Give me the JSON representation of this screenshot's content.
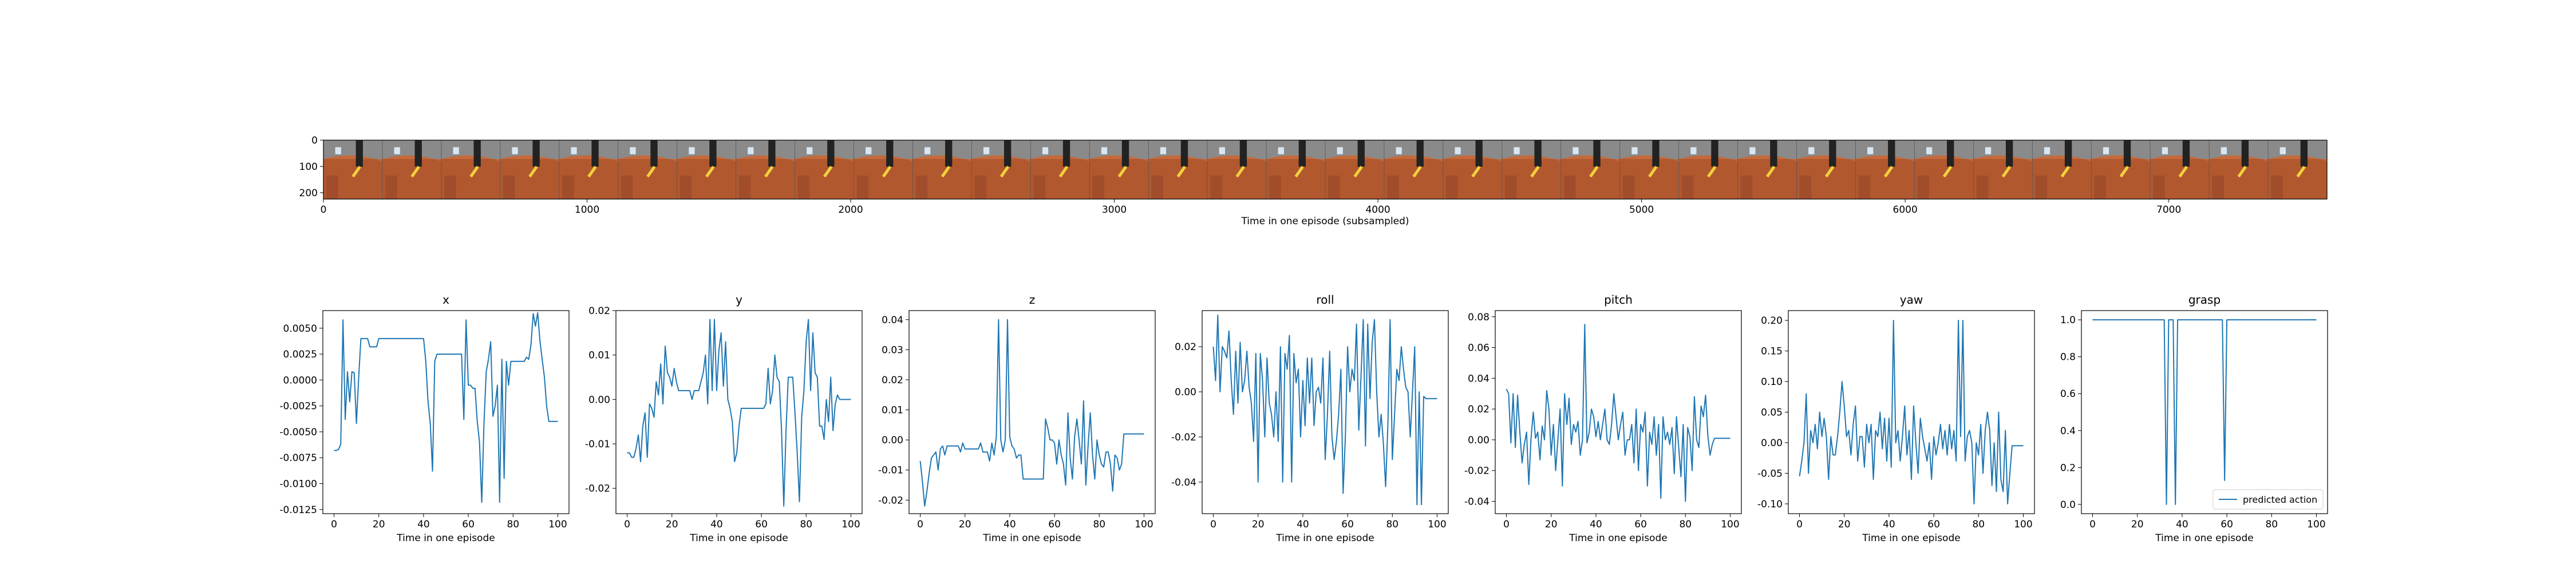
{
  "filmstrip": {
    "xlabel": "Time in one episode (subsampled)",
    "x_ticks": [
      "0",
      "1000",
      "2000",
      "3000",
      "4000",
      "5000",
      "6000",
      "7000"
    ],
    "y_ticks": [
      "0",
      "100",
      "200"
    ],
    "frame_count": 34
  },
  "chart_data": [
    {
      "type": "line",
      "title": "x",
      "xlabel": "Time in one episode",
      "ylabel": "",
      "xlim": [
        -5,
        105
      ],
      "ylim": [
        -0.0129,
        0.0067
      ],
      "x_ticks": [
        "0",
        "20",
        "40",
        "60",
        "80",
        "100"
      ],
      "y_ticks": [
        "0.0050",
        "0.0025",
        "0.0000",
        "-0.0025",
        "-0.0050",
        "-0.0075",
        "-0.0100",
        "-0.0125"
      ],
      "series": [
        {
          "values": [
            -0.0068,
            -0.0068,
            -0.0067,
            -0.0062,
            0.0058,
            -0.0038,
            0.0008,
            -0.0021,
            0.0008,
            0.0007,
            -0.0042,
            0.0002,
            0.004,
            0.004,
            0.004,
            0.004,
            0.0032,
            0.0032,
            0.0032,
            0.0032,
            0.004,
            0.004,
            0.004,
            0.004,
            0.004,
            0.004,
            0.004,
            0.004,
            0.004,
            0.004,
            0.004,
            0.004,
            0.004,
            0.004,
            0.004,
            0.004,
            0.004,
            0.004,
            0.004,
            0.004,
            0.004,
            0.0018,
            -0.0021,
            -0.0042,
            -0.0088,
            0.0018,
            0.0025,
            0.0025,
            0.0025,
            0.0025,
            0.0025,
            0.0025,
            0.0025,
            0.0025,
            0.0025,
            0.0025,
            0.0025,
            0.0025,
            -0.0038,
            0.0058,
            -0.0005,
            -0.0005,
            -0.0008,
            -0.0008,
            -0.004,
            -0.006,
            -0.0118,
            -0.0042,
            0.0008,
            0.002,
            0.0037,
            -0.0035,
            -0.0025,
            -0.0005,
            -0.0118,
            0.002,
            -0.0095,
            0.0018,
            -0.0005,
            0.0018,
            0.0018,
            0.0018,
            0.0018,
            0.0018,
            0.0018,
            0.0018,
            0.0022,
            0.002,
            0.0034,
            0.0064,
            0.0052,
            0.0065,
            0.0038,
            0.002,
            0.0003,
            -0.0025,
            -0.004,
            -0.004,
            -0.004,
            -0.004,
            -0.004
          ]
        }
      ]
    },
    {
      "type": "line",
      "title": "y",
      "xlabel": "Time in one episode",
      "ylabel": "",
      "xlim": [
        -5,
        105
      ],
      "ylim": [
        -0.0257,
        0.02
      ],
      "x_ticks": [
        "0",
        "20",
        "40",
        "60",
        "80",
        "100"
      ],
      "y_ticks": [
        "0.02",
        "0.01",
        "0.00",
        "-0.01",
        "-0.02"
      ],
      "series": [
        {
          "values": [
            -0.012,
            -0.012,
            -0.013,
            -0.013,
            -0.011,
            -0.008,
            -0.014,
            -0.006,
            -0.003,
            -0.013,
            -0.001,
            -0.002,
            -0.004,
            0.004,
            0.001,
            0.008,
            -0.001,
            0.012,
            0.006,
            0.005,
            0.003,
            0.007,
            0.004,
            0.002,
            0.002,
            0.002,
            0.002,
            0.002,
            0.002,
            0.0,
            0.002,
            0.002,
            0.002,
            0.004,
            0.006,
            0.01,
            -0.001,
            0.018,
            0.002,
            0.018,
            0.002,
            0.011,
            0.015,
            0.003,
            0.013,
            0.0,
            -0.002,
            -0.005,
            -0.014,
            -0.012,
            -0.006,
            -0.002,
            -0.002,
            -0.002,
            -0.002,
            -0.002,
            -0.002,
            -0.002,
            -0.002,
            -0.002,
            -0.002,
            -0.002,
            -0.001,
            0.007,
            -0.001,
            0.002,
            0.01,
            0.005,
            0.004,
            -0.007,
            -0.024,
            -0.007,
            0.005,
            0.005,
            0.005,
            -0.003,
            -0.012,
            -0.023,
            -0.004,
            0.002,
            0.013,
            0.018,
            0.002,
            0.015,
            0.006,
            0.005,
            -0.006,
            -0.006,
            -0.009,
            0.0,
            -0.005,
            0.005,
            -0.007,
            -0.001,
            0.001,
            0.0,
            0.0,
            0.0,
            0.0,
            0.0,
            0.0
          ]
        }
      ]
    },
    {
      "type": "line",
      "title": "z",
      "xlabel": "Time in one episode",
      "ylabel": "",
      "xlim": [
        -5,
        105
      ],
      "ylim": [
        -0.0245,
        0.043
      ],
      "x_ticks": [
        "0",
        "20",
        "40",
        "60",
        "80",
        "100"
      ],
      "y_ticks": [
        "0.04",
        "0.03",
        "0.02",
        "0.01",
        "0.00",
        "-0.01",
        "-0.02"
      ],
      "series": [
        {
          "values": [
            -0.007,
            -0.014,
            -0.022,
            -0.017,
            -0.011,
            -0.006,
            -0.005,
            -0.004,
            -0.01,
            -0.003,
            -0.002,
            -0.005,
            -0.002,
            -0.002,
            -0.002,
            -0.002,
            -0.002,
            -0.002,
            -0.004,
            -0.001,
            -0.003,
            -0.003,
            -0.003,
            -0.003,
            -0.003,
            -0.003,
            -0.003,
            -0.001,
            -0.004,
            -0.004,
            -0.004,
            -0.007,
            -0.001,
            -0.005,
            0.001,
            0.04,
            0.0,
            -0.004,
            0.0,
            0.04,
            0.001,
            -0.002,
            -0.003,
            -0.006,
            -0.005,
            -0.005,
            -0.013,
            -0.013,
            -0.013,
            -0.013,
            -0.013,
            -0.013,
            -0.013,
            -0.013,
            -0.013,
            -0.013,
            0.007,
            0.004,
            0.0,
            0.0,
            -0.001,
            -0.008,
            0.0,
            -0.005,
            -0.008,
            -0.015,
            0.009,
            -0.006,
            -0.013,
            0.001,
            0.007,
            0.0,
            -0.008,
            0.013,
            -0.015,
            -0.002,
            0.009,
            -0.005,
            -0.013,
            0.0,
            -0.005,
            -0.008,
            -0.009,
            -0.004,
            -0.004,
            -0.008,
            -0.017,
            -0.005,
            -0.006,
            -0.01,
            -0.008,
            0.002,
            0.002,
            0.002,
            0.002,
            0.002,
            0.002,
            0.002,
            0.002,
            0.002,
            0.002
          ]
        }
      ]
    },
    {
      "type": "line",
      "title": "roll",
      "xlabel": "Time in one episode",
      "ylabel": "",
      "xlim": [
        -5,
        105
      ],
      "ylim": [
        -0.054,
        0.036
      ],
      "x_ticks": [
        "0",
        "20",
        "40",
        "60",
        "80",
        "100"
      ],
      "y_ticks": [
        "0.02",
        "0.00",
        "-0.02",
        "-0.04"
      ],
      "series": [
        {
          "values": [
            0.02,
            0.005,
            0.034,
            0.0,
            0.02,
            0.018,
            0.015,
            0.027,
            0.005,
            -0.01,
            0.018,
            -0.005,
            0.022,
            0.0,
            0.005,
            0.018,
            0.002,
            -0.005,
            -0.022,
            0.017,
            -0.04,
            0.017,
            0.005,
            -0.02,
            0.015,
            -0.005,
            -0.01,
            -0.02,
            0.0,
            -0.022,
            0.02,
            -0.04,
            0.017,
            0.01,
            0.025,
            -0.04,
            0.017,
            0.004,
            0.01,
            -0.02,
            0.005,
            -0.015,
            0.015,
            -0.005,
            0.015,
            -0.015,
            0.0,
            0.002,
            -0.005,
            0.015,
            -0.03,
            -0.01,
            0.018,
            -0.02,
            -0.03,
            -0.022,
            -0.01,
            0.01,
            -0.045,
            -0.02,
            0.02,
            0.0,
            0.01,
            0.005,
            0.03,
            -0.017,
            0.007,
            0.032,
            -0.024,
            0.03,
            -0.003,
            0.022,
            0.032,
            0.0,
            -0.02,
            -0.01,
            -0.023,
            -0.042,
            -0.015,
            0.032,
            -0.03,
            -0.01,
            0.01,
            0.005,
            0.02,
            0.01,
            0.002,
            0.0,
            -0.02,
            0.0,
            0.02,
            -0.05,
            0.0,
            -0.05,
            -0.002,
            -0.003,
            -0.003,
            -0.003,
            -0.003,
            -0.003,
            -0.003
          ]
        }
      ]
    },
    {
      "type": "line",
      "title": "pitch",
      "xlabel": "Time in one episode",
      "ylabel": "",
      "xlim": [
        -5,
        105
      ],
      "ylim": [
        -0.048,
        0.084
      ],
      "x_ticks": [
        "0",
        "20",
        "40",
        "60",
        "80",
        "100"
      ],
      "y_ticks": [
        "0.08",
        "0.06",
        "0.04",
        "0.02",
        "0.00",
        "-0.02",
        "-0.04"
      ],
      "series": [
        {
          "values": [
            0.033,
            0.03,
            -0.002,
            0.03,
            -0.005,
            0.029,
            0.005,
            -0.015,
            -0.003,
            0.005,
            -0.029,
            0.001,
            0.018,
            0.001,
            0.005,
            -0.013,
            0.009,
            0.0,
            0.032,
            0.02,
            -0.01,
            0.01,
            -0.02,
            0.0,
            0.02,
            -0.03,
            0.03,
            0.01,
            0.027,
            -0.003,
            0.01,
            0.005,
            0.012,
            -0.01,
            0.0,
            0.075,
            -0.002,
            0.005,
            0.02,
            0.015,
            0.002,
            0.012,
            0.0,
            0.01,
            0.02,
            0.0,
            -0.003,
            0.01,
            0.03,
            0.015,
            0.0,
            0.01,
            0.018,
            -0.01,
            0.0,
            0.0,
            0.01,
            -0.015,
            0.02,
            -0.02,
            0.01,
            0.005,
            0.018,
            -0.03,
            0.005,
            -0.003,
            0.015,
            -0.01,
            0.01,
            -0.038,
            0.015,
            0.0,
            0.005,
            -0.003,
            0.008,
            -0.022,
            0.015,
            -0.005,
            -0.024,
            0.01,
            -0.04,
            0.008,
            0.002,
            -0.02,
            0.028,
            0.0,
            -0.005,
            0.022,
            0.015,
            0.029,
            0.003,
            -0.01,
            -0.003,
            0.001,
            0.001,
            0.001,
            0.001,
            0.001,
            0.001,
            0.001,
            0.001
          ]
        }
      ]
    },
    {
      "type": "line",
      "title": "yaw",
      "xlabel": "Time in one episode",
      "ylabel": "",
      "xlim": [
        -5,
        105
      ],
      "ylim": [
        -0.116,
        0.216
      ],
      "x_ticks": [
        "0",
        "20",
        "40",
        "60",
        "80",
        "100"
      ],
      "y_ticks": [
        "0.20",
        "0.15",
        "0.10",
        "0.05",
        "0.00",
        "-0.05",
        "-0.10"
      ],
      "series": [
        {
          "values": [
            -0.055,
            -0.03,
            0.0,
            0.08,
            -0.05,
            0.02,
            0.0,
            0.03,
            -0.01,
            0.05,
            0.01,
            0.04,
            0.01,
            -0.06,
            0.01,
            -0.02,
            -0.02,
            0.01,
            0.05,
            0.1,
            0.06,
            0.01,
            0.02,
            -0.02,
            0.03,
            0.06,
            -0.03,
            0.01,
            0.01,
            -0.04,
            0.03,
            0.0,
            0.03,
            -0.06,
            0.02,
            0.01,
            0.05,
            -0.01,
            0.04,
            -0.03,
            0.04,
            -0.04,
            0.2,
            0.0,
            0.02,
            -0.03,
            0.01,
            0.06,
            -0.02,
            0.02,
            -0.06,
            0.06,
            0.0,
            -0.05,
            0.04,
            0.01,
            -0.01,
            -0.03,
            0.0,
            -0.06,
            0.01,
            -0.02,
            0.0,
            0.03,
            -0.01,
            0.02,
            -0.02,
            0.03,
            -0.01,
            0.02,
            -0.03,
            0.2,
            0.01,
            0.2,
            -0.03,
            0.01,
            0.02,
            0.0,
            -0.1,
            0.0,
            -0.02,
            0.03,
            -0.05,
            0.02,
            0.05,
            0.02,
            -0.07,
            0.0,
            -0.08,
            0.05,
            -0.06,
            -0.08,
            0.02,
            -0.1,
            -0.05,
            -0.005,
            -0.005,
            -0.005,
            -0.005,
            -0.005,
            -0.005
          ]
        }
      ]
    },
    {
      "type": "line",
      "title": "grasp",
      "xlabel": "Time in one episode",
      "ylabel": "",
      "xlim": [
        -5,
        105
      ],
      "ylim": [
        -0.05,
        1.05
      ],
      "x_ticks": [
        "0",
        "20",
        "40",
        "60",
        "80",
        "100"
      ],
      "y_ticks": [
        "1.0",
        "0.8",
        "0.6",
        "0.4",
        "0.2",
        "0.0"
      ],
      "legend": {
        "position": "lower-right",
        "label": "predicted action"
      },
      "series": [
        {
          "name": "predicted action",
          "values": [
            1,
            1,
            1,
            1,
            1,
            1,
            1,
            1,
            1,
            1,
            1,
            1,
            1,
            1,
            1,
            1,
            1,
            1,
            1,
            1,
            1,
            1,
            1,
            1,
            1,
            1,
            1,
            1,
            1,
            1,
            1,
            1,
            1,
            0,
            1,
            1,
            1,
            0,
            1,
            1,
            1,
            1,
            1,
            1,
            1,
            1,
            1,
            1,
            1,
            1,
            1,
            1,
            1,
            1,
            1,
            1,
            1,
            1,
            1,
            0.13,
            1,
            1,
            1,
            1,
            1,
            1,
            1,
            1,
            1,
            1,
            1,
            1,
            1,
            1,
            1,
            1,
            1,
            1,
            1,
            1,
            1,
            1,
            1,
            1,
            1,
            1,
            1,
            1,
            1,
            1,
            1,
            1,
            1,
            1,
            1,
            1,
            1,
            1,
            1,
            1,
            1
          ]
        }
      ]
    }
  ]
}
